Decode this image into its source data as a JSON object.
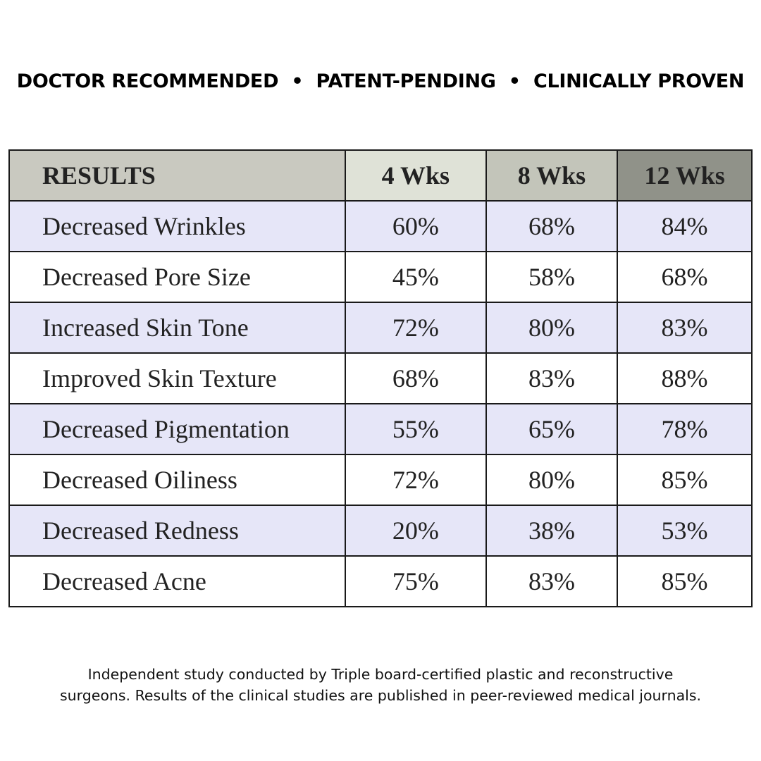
{
  "header": {
    "tagline": "DOCTOR RECOMMENDED  •  PATENT-PENDING  •  CLINICALLY PROVEN"
  },
  "table": {
    "columns": [
      "RESULTS",
      "4 Wks",
      "8 Wks",
      "12 Wks"
    ],
    "rows": [
      [
        "Decreased Wrinkles",
        "60%",
        "68%",
        "84%"
      ],
      [
        "Decreased Pore Size",
        "45%",
        "58%",
        "68%"
      ],
      [
        "Increased Skin Tone",
        "72%",
        "80%",
        "83%"
      ],
      [
        "Improved Skin Texture",
        "68%",
        "83%",
        "88%"
      ],
      [
        "Decreased Pigmentation",
        "55%",
        "65%",
        "78%"
      ],
      [
        "Decreased Oiliness",
        "72%",
        "80%",
        "85%"
      ],
      [
        "Decreased Redness",
        "20%",
        "38%",
        "53%"
      ],
      [
        "Decreased Acne",
        "75%",
        "83%",
        "85%"
      ]
    ]
  },
  "footnote": {
    "lines": [
      "Independent study conducted by Triple board-certified plastic and reconstructive",
      "surgeons. Results of the clinical studies are published in peer-reviewed medical journals."
    ]
  }
}
